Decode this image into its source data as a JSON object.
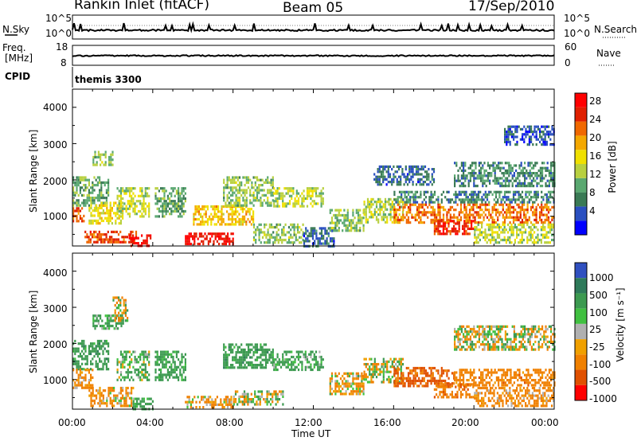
{
  "header": {
    "station": "Rankin Inlet (fitACF)",
    "beam": "Beam 05",
    "date": "17/Sep/2010"
  },
  "strip_panels": {
    "nsky_label": "N.Sky",
    "nsearch_label": "N.Search",
    "noise_ticks": [
      "10^5",
      "10^0"
    ],
    "freq_label": "Freq.",
    "freq_unit": "[MHz]",
    "freq_ticks": [
      "18",
      "8"
    ],
    "nave_label": "Nave",
    "nave_ticks": [
      "60",
      "0"
    ],
    "cpid_label": "CPID",
    "cpid_value": "themis 3300"
  },
  "colors": {
    "power_scale": [
      "#0000ff",
      "#2a4fc0",
      "#3a7a55",
      "#5aa870",
      "#b8d040",
      "#f0e000",
      "#f4a800",
      "#f06800",
      "#e02000",
      "#ff0000"
    ],
    "velocity_scale": [
      "#3050c0",
      "#2e7a5a",
      "#3c9a50",
      "#40c040",
      "#b0b0b0",
      "#f0a000",
      "#f08000",
      "#e05000",
      "#ff0000"
    ]
  },
  "axes": {
    "y_label": "Slant Range [km]",
    "y_ticks": [
      "4000",
      "3000",
      "2000",
      "1000"
    ],
    "x_ticks": [
      "00:00",
      "04:00",
      "08:00",
      "12:00",
      "16:00",
      "20:00",
      "00:00"
    ],
    "x_label": "Time UT"
  },
  "colorbars": {
    "power_label": "Power [dB]",
    "power_ticks": [
      "28",
      "24",
      "20",
      "16",
      "12",
      "8",
      "4"
    ],
    "velocity_label": "Velocity [m s⁻¹]",
    "velocity_ticks": [
      "1000",
      "500",
      "100",
      "25",
      "-25",
      "-100",
      "-500",
      "-1000"
    ]
  },
  "chart_data": [
    {
      "type": "heatmap",
      "title": "Power",
      "x": {
        "unit": "hours UT",
        "range": [
          0,
          24
        ]
      },
      "y": {
        "unit": "km",
        "range": [
          180,
          4500
        ]
      },
      "z_unit": "dB",
      "z_range": [
        0,
        30
      ],
      "regions": [
        {
          "t": [
            0.0,
            0.6
          ],
          "r": [
            850,
            1250
          ],
          "value": 24
        },
        {
          "t": [
            0.0,
            1.8
          ],
          "r": [
            1300,
            2100
          ],
          "value": 10
        },
        {
          "t": [
            0.6,
            3.2
          ],
          "r": [
            300,
            600
          ],
          "value": 24
        },
        {
          "t": [
            0.8,
            2.5
          ],
          "r": [
            800,
            1400
          ],
          "value": 16
        },
        {
          "t": [
            1.0,
            2.0
          ],
          "r": [
            2400,
            2800
          ],
          "value": 12
        },
        {
          "t": [
            2.2,
            3.8
          ],
          "r": [
            1000,
            1800
          ],
          "value": 14
        },
        {
          "t": [
            2.8,
            3.9
          ],
          "r": [
            200,
            500
          ],
          "value": 28
        },
        {
          "t": [
            4.1,
            5.6
          ],
          "r": [
            1000,
            1800
          ],
          "value": 10
        },
        {
          "t": [
            5.6,
            8.0
          ],
          "r": [
            200,
            550
          ],
          "value": 28
        },
        {
          "t": [
            6.0,
            9.0
          ],
          "r": [
            800,
            1300
          ],
          "value": 18
        },
        {
          "t": [
            7.5,
            10.0
          ],
          "r": [
            1300,
            2100
          ],
          "value": 12
        },
        {
          "t": [
            9.0,
            11.5
          ],
          "r": [
            300,
            800
          ],
          "value": 12
        },
        {
          "t": [
            10.0,
            12.5
          ],
          "r": [
            1300,
            1800
          ],
          "value": 14
        },
        {
          "t": [
            11.5,
            13.0
          ],
          "r": [
            200,
            700
          ],
          "value": 6
        },
        {
          "t": [
            12.8,
            14.5
          ],
          "r": [
            600,
            1200
          ],
          "value": 12
        },
        {
          "t": [
            14.5,
            16.5
          ],
          "r": [
            800,
            1500
          ],
          "value": 14
        },
        {
          "t": [
            16.0,
            24.0
          ],
          "r": [
            850,
            1350
          ],
          "value": 22
        },
        {
          "t": [
            16.0,
            24.0
          ],
          "r": [
            1400,
            1700
          ],
          "value": 8
        },
        {
          "t": [
            18.0,
            20.0
          ],
          "r": [
            500,
            900
          ],
          "value": 26
        },
        {
          "t": [
            20.0,
            24.0
          ],
          "r": [
            300,
            800
          ],
          "value": 14
        },
        {
          "t": [
            19.0,
            24.0
          ],
          "r": [
            1800,
            2500
          ],
          "value": 8
        },
        {
          "t": [
            15.0,
            18.0
          ],
          "r": [
            1900,
            2400
          ],
          "value": 6
        },
        {
          "t": [
            21.5,
            24.0
          ],
          "r": [
            3000,
            3500
          ],
          "value": 5
        }
      ]
    },
    {
      "type": "heatmap",
      "title": "Velocity",
      "x": {
        "unit": "hours UT",
        "range": [
          0,
          24
        ]
      },
      "y": {
        "unit": "km",
        "range": [
          180,
          4500
        ]
      },
      "z_unit": "m/s",
      "z_range": [
        -1000,
        1000
      ],
      "regions": [
        {
          "t": [
            0.0,
            1.8
          ],
          "r": [
            1300,
            2100
          ],
          "value": 300
        },
        {
          "t": [
            0.0,
            1.0
          ],
          "r": [
            800,
            1300
          ],
          "value": -200
        },
        {
          "t": [
            0.8,
            3.0
          ],
          "r": [
            300,
            800
          ],
          "value": -150
        },
        {
          "t": [
            1.0,
            2.5
          ],
          "r": [
            2400,
            2800
          ],
          "value": 200
        },
        {
          "t": [
            2.2,
            3.8
          ],
          "r": [
            1000,
            1800
          ],
          "value": 150
        },
        {
          "t": [
            3.0,
            4.0
          ],
          "r": [
            200,
            500
          ],
          "value": 200
        },
        {
          "t": [
            4.1,
            5.6
          ],
          "r": [
            1000,
            1800
          ],
          "value": 250
        },
        {
          "t": [
            5.6,
            8.0
          ],
          "r": [
            200,
            550
          ],
          "value": -150
        },
        {
          "t": [
            7.5,
            10.0
          ],
          "r": [
            1300,
            2000
          ],
          "value": 300
        },
        {
          "t": [
            8.0,
            10.5
          ],
          "r": [
            300,
            700
          ],
          "value": 0
        },
        {
          "t": [
            10.0,
            12.5
          ],
          "r": [
            1300,
            1800
          ],
          "value": 200
        },
        {
          "t": [
            12.8,
            14.5
          ],
          "r": [
            600,
            1200
          ],
          "value": -100
        },
        {
          "t": [
            14.5,
            16.5
          ],
          "r": [
            900,
            1600
          ],
          "value": 0
        },
        {
          "t": [
            16.0,
            19.0
          ],
          "r": [
            850,
            1350
          ],
          "value": -600
        },
        {
          "t": [
            19.0,
            24.0
          ],
          "r": [
            850,
            1300
          ],
          "value": -300
        },
        {
          "t": [
            18.0,
            20.0
          ],
          "r": [
            500,
            900
          ],
          "value": -400
        },
        {
          "t": [
            19.0,
            24.0
          ],
          "r": [
            1800,
            2500
          ],
          "value": 0
        },
        {
          "t": [
            20.0,
            24.0
          ],
          "r": [
            300,
            800
          ],
          "value": -200
        },
        {
          "t": [
            2.0,
            2.7
          ],
          "r": [
            2600,
            3300
          ],
          "value": 0
        }
      ]
    }
  ]
}
